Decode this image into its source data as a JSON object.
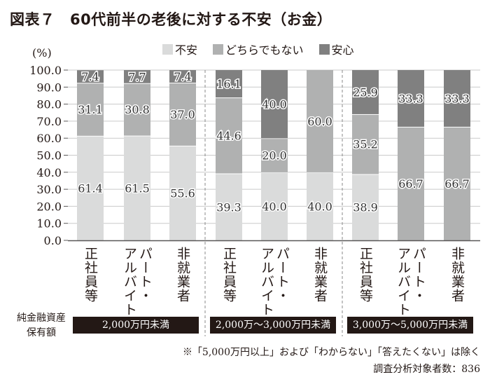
{
  "title": "図表７　60代前半の老後に対する不安（お金）",
  "legend": {
    "items": [
      {
        "label": "不安",
        "color": "#dadbdb"
      },
      {
        "label": "どちらでもない",
        "color": "#b0b1b1"
      },
      {
        "label": "安心",
        "color": "#808080"
      }
    ]
  },
  "chart_data": {
    "type": "bar",
    "stacked": true,
    "title": "60代前半の老後に対する不安（お金）",
    "ylabel": "(%)",
    "ylim": [
      0,
      100
    ],
    "yticks": [
      "0.0",
      "10.0",
      "20.0",
      "30.0",
      "40.0",
      "50.0",
      "60.0",
      "70.0",
      "80.0",
      "90.0",
      "100.0"
    ],
    "grid": true,
    "legend_position": "top",
    "groups": [
      {
        "label": "2,000万円未満",
        "categories": [
          "正社員等",
          "パート・アルバイト",
          "非就業者"
        ]
      },
      {
        "label": "2,000万～3,000万円未満",
        "categories": [
          "正社員等",
          "パート・アルバイト",
          "非就業者"
        ]
      },
      {
        "label": "3,000万～5,000万円未満",
        "categories": [
          "正社員等",
          "パート・アルバイト",
          "非就業者"
        ]
      }
    ],
    "category_lines": [
      [
        "正社員等"
      ],
      [
        "パート・",
        "アルバイト"
      ],
      [
        "非就業者"
      ],
      [
        "正社員等"
      ],
      [
        "パート・",
        "アルバイト"
      ],
      [
        "非就業者"
      ],
      [
        "正社員等"
      ],
      [
        "パート・",
        "アルバイト"
      ],
      [
        "非就業者"
      ]
    ],
    "series": [
      {
        "name": "不安",
        "values": [
          61.4,
          61.5,
          55.6,
          39.3,
          40.0,
          40.0,
          38.9,
          0,
          0
        ]
      },
      {
        "name": "どちらでもない",
        "values": [
          31.1,
          30.8,
          37.0,
          44.6,
          20.0,
          60.0,
          35.2,
          66.7,
          66.7
        ]
      },
      {
        "name": "安心",
        "values": [
          7.4,
          7.7,
          7.4,
          16.1,
          40.0,
          0,
          25.9,
          33.3,
          33.3
        ]
      }
    ]
  },
  "asset_label": [
    "純金融資産",
    "保有額"
  ],
  "notes": {
    "exclusion": "※「5,000万円以上」および「わからない」「答えたくない」は除く",
    "sample": "調査分析対象者数：836"
  }
}
